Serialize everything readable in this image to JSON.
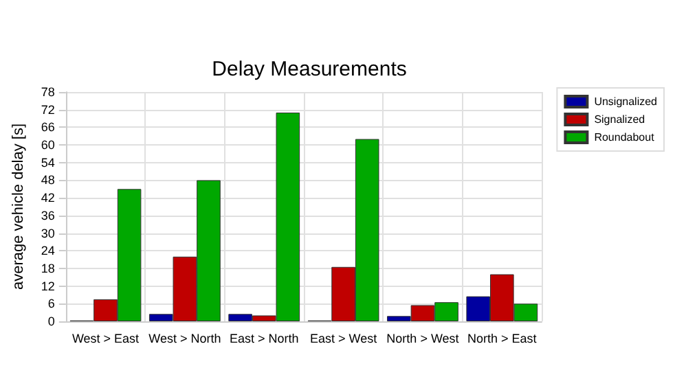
{
  "chart_data": {
    "type": "bar",
    "title": "Delay Measurements",
    "ylabel": "average vehicle delay [s]",
    "categories": [
      "West > East",
      "West > North",
      "East > North",
      "East > West",
      "North > West",
      "North > East"
    ],
    "series": [
      {
        "name": "Unsignalized",
        "color": "#0000a0",
        "values": [
          0.3,
          2.5,
          2.5,
          0.3,
          1.8,
          8.5
        ]
      },
      {
        "name": "Signalized",
        "color": "#c00000",
        "values": [
          7.5,
          22,
          2,
          18.5,
          5.5,
          16
        ]
      },
      {
        "name": "Roundabout",
        "color": "#00a800",
        "values": [
          45,
          48,
          71,
          62,
          6.5,
          6
        ]
      }
    ],
    "ylim": [
      0,
      78
    ],
    "yticks": [
      0,
      6,
      12,
      18,
      24,
      30,
      36,
      42,
      48,
      54,
      60,
      66,
      72,
      78
    ],
    "grid": true,
    "legend": "top right"
  }
}
